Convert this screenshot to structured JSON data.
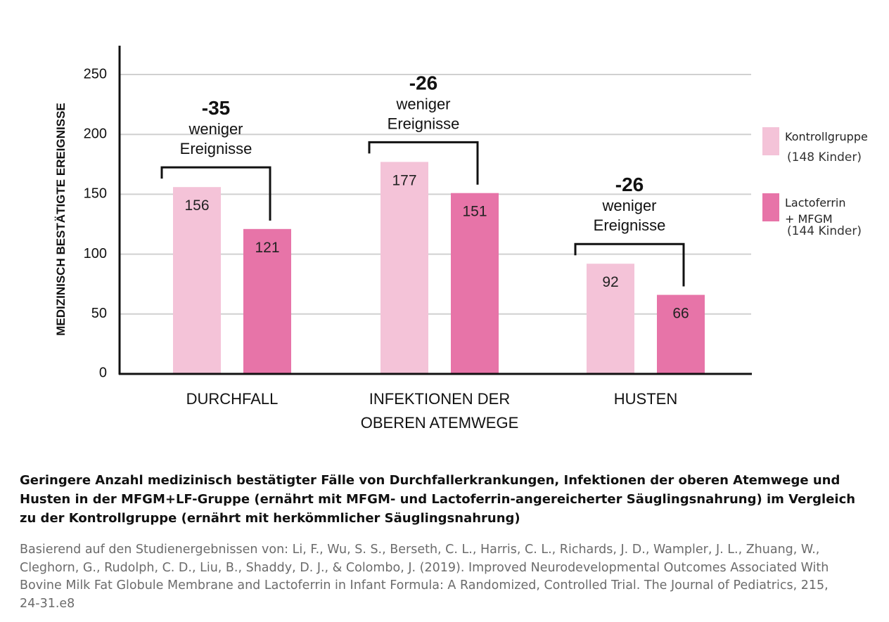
{
  "chart_data": {
    "type": "bar",
    "ylabel": "MEDIZINISCH BESTÄTIGTE EREIGNISSE",
    "ylim": [
      0,
      250
    ],
    "yticks": [
      0,
      50,
      100,
      150,
      200,
      250
    ],
    "grid": true,
    "legend_position": "right",
    "categories": [
      [
        "DURCHFALL"
      ],
      [
        "INFEKTIONEN DER",
        "OBEREN ATEMWEGE"
      ],
      [
        "HUSTEN"
      ]
    ],
    "series": [
      {
        "name": "Kontrollgruppe",
        "subtitle": "(148 Kinder)",
        "color": "#f4c3d8",
        "values": [
          156,
          177,
          92
        ]
      },
      {
        "name": "Lactoferrin + MFGM",
        "name_lines": [
          "Lactoferrin",
          "+ MFGM"
        ],
        "subtitle": "(144 Kinder)",
        "color": "#e774a8",
        "values": [
          121,
          151,
          66
        ]
      }
    ],
    "annotations": [
      {
        "diff": "-35",
        "lines": [
          "weniger",
          "Ereignisse"
        ]
      },
      {
        "diff": "-26",
        "lines": [
          "weniger",
          "Ereignisse"
        ]
      },
      {
        "diff": "-26",
        "lines": [
          "weniger",
          "Ereignisse"
        ]
      }
    ]
  },
  "caption": "Geringere Anzahl medizinisch bestätigter Fälle von Durchfallerkrankungen, Infektionen der oberen Atemwege und Husten in der MFGM+LF-Gruppe (ernährt mit MFGM- und Lactoferrin-angereicherter Säuglingsnahrung) im Vergleich zu der Kontrollgruppe (ernährt mit herkömmlicher Säuglingsnahrung)",
  "source": "Basierend auf den Studienergebnissen von: Li, F., Wu, S. S., Berseth, C. L., Harris, C. L., Richards, J. D., Wampler, J. L., Zhuang, W., Cleghorn, G., Rudolph, C. D., Liu, B., Shaddy, D. J., & Colombo, J. (2019). Improved Neurodevelopmental Outcomes Associated With Bovine Milk Fat Globule Membrane and Lactoferrin in Infant Formula: A Randomized, Controlled Trial. The Journal of Pediatrics, 215, 24-31.e8"
}
